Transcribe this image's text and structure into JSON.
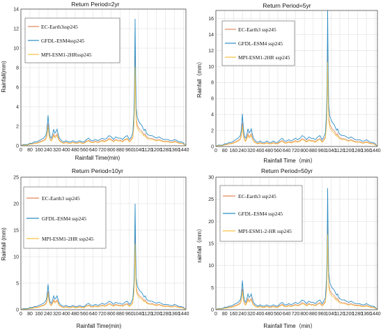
{
  "colors": {
    "ec_earth3": "#e0875a",
    "gfdl_esm4": "#2b8cc4",
    "mpi_esm1_2hr": "#f5c242"
  },
  "chart_data": [
    {
      "type": "line",
      "title": "Return Period=2yr",
      "xlabel": "Rainfall Time(min)",
      "ylabel": "Rainfall(mm)",
      "xlim": [
        0,
        1460
      ],
      "ylim": [
        0,
        14
      ],
      "xticks": [
        0,
        80,
        160,
        240,
        320,
        400,
        480,
        560,
        640,
        720,
        800,
        880,
        960,
        1040,
        1120,
        1200,
        1280,
        1360,
        1440
      ],
      "yticks": [
        0,
        2,
        4,
        6,
        8,
        10,
        12,
        14
      ],
      "peak": 13.0,
      "legend_placement": "upper-left",
      "series": [
        {
          "name": "EC-Earth3ssp245",
          "scale": 0.72
        },
        {
          "name": "GFDL-ESM4ssp245",
          "scale": 1.0
        },
        {
          "name": "MPI-ESM1-2HRssp245",
          "scale": 0.62
        }
      ]
    },
    {
      "type": "line",
      "title": "Return Period=5yr",
      "xlabel": "Rainfall Time（min）",
      "ylabel": "Rainfall（mm）",
      "xlim": [
        0,
        1460
      ],
      "ylim": [
        0,
        17
      ],
      "xticks": [
        0,
        80,
        160,
        240,
        320,
        400,
        480,
        560,
        640,
        720,
        800,
        880,
        960,
        1040,
        1120,
        1200,
        1280,
        1360,
        1440
      ],
      "yticks": [
        0,
        2,
        4,
        6,
        8,
        10,
        12,
        14,
        16
      ],
      "peak": 17.0,
      "legend_placement": "upper-left",
      "series": [
        {
          "name": "EC-Earth3 ssp245",
          "scale": 0.72
        },
        {
          "name": "GFDL-ESM4 ssp245",
          "scale": 1.0
        },
        {
          "name": "MPI-ESM1-2HR ssp245",
          "scale": 0.62
        }
      ]
    },
    {
      "type": "line",
      "title": "Return Period=10yr",
      "xlabel": "Rainfall Time(min)",
      "ylabel": "Rainfall (mm)",
      "xlim": [
        0,
        1460
      ],
      "ylim": [
        0,
        25
      ],
      "xticks": [
        0,
        80,
        160,
        240,
        320,
        400,
        480,
        560,
        640,
        720,
        800,
        880,
        960,
        1040,
        1120,
        1200,
        1280,
        1360,
        1440
      ],
      "yticks": [
        0,
        5,
        10,
        15,
        20,
        25
      ],
      "peak": 20.0,
      "legend_placement": "upper-left",
      "series": [
        {
          "name": "EC-Earth3 ssp245",
          "scale": 0.72
        },
        {
          "name": "GFDL-ESM4 ssp245",
          "scale": 1.0
        },
        {
          "name": "MPI-ESM1-2HR ssp245",
          "scale": 0.62
        }
      ]
    },
    {
      "type": "line",
      "title": "Return Period=50yr",
      "xlabel": "Rainfall Time（min）",
      "ylabel": "rainfall（mm）",
      "xlim": [
        0,
        1460
      ],
      "ylim": [
        0,
        30
      ],
      "xticks": [
        0,
        80,
        160,
        240,
        320,
        400,
        480,
        560,
        640,
        720,
        800,
        880,
        960,
        1040,
        1120,
        1200,
        1280,
        1360,
        1440
      ],
      "yticks": [
        0,
        5,
        10,
        15,
        20,
        25,
        30
      ],
      "peak": 27.5,
      "legend_placement": "upper-left",
      "series": [
        {
          "name": "EC-Earth3 ssp245",
          "scale": 0.72
        },
        {
          "name": "GFDL-ESM4 ssp245",
          "scale": 1.0
        },
        {
          "name": "MPI-ESM1-2-HR ssp245",
          "scale": 0.62
        }
      ]
    }
  ],
  "shape": {
    "x": [
      0,
      20,
      40,
      60,
      80,
      100,
      120,
      140,
      160,
      180,
      200,
      220,
      230,
      240,
      250,
      260,
      270,
      280,
      290,
      300,
      310,
      320,
      330,
      340,
      350,
      360,
      380,
      400,
      420,
      440,
      460,
      480,
      500,
      520,
      540,
      560,
      580,
      600,
      620,
      640,
      660,
      680,
      700,
      720,
      740,
      760,
      780,
      800,
      820,
      840,
      860,
      880,
      900,
      920,
      940,
      960,
      970,
      980,
      990,
      1000,
      1005,
      1010,
      1015,
      1020,
      1030,
      1040,
      1050,
      1060,
      1070,
      1080,
      1090,
      1100,
      1110,
      1120,
      1140,
      1160,
      1180,
      1200,
      1220,
      1240,
      1260,
      1280,
      1300,
      1320,
      1340,
      1360,
      1380,
      1400,
      1420,
      1440,
      1460
    ],
    "y": [
      0.0,
      0.01,
      0.01,
      0.01,
      0.02,
      0.02,
      0.03,
      0.03,
      0.04,
      0.05,
      0.06,
      0.08,
      0.12,
      0.24,
      0.12,
      0.07,
      0.06,
      0.09,
      0.13,
      0.1,
      0.11,
      0.13,
      0.09,
      0.06,
      0.05,
      0.04,
      0.03,
      0.04,
      0.03,
      0.03,
      0.04,
      0.03,
      0.03,
      0.04,
      0.03,
      0.03,
      0.05,
      0.06,
      0.04,
      0.04,
      0.05,
      0.04,
      0.05,
      0.06,
      0.05,
      0.06,
      0.08,
      0.07,
      0.05,
      0.07,
      0.06,
      0.06,
      0.05,
      0.07,
      0.08,
      0.05,
      0.06,
      0.08,
      0.1,
      0.25,
      0.45,
      1.0,
      0.55,
      0.3,
      0.22,
      0.2,
      0.18,
      0.17,
      0.16,
      0.14,
      0.12,
      0.13,
      0.1,
      0.09,
      0.08,
      0.08,
      0.07,
      0.06,
      0.07,
      0.06,
      0.05,
      0.05,
      0.05,
      0.04,
      0.04,
      0.05,
      0.04,
      0.03,
      0.03,
      0.02,
      0.0
    ]
  }
}
